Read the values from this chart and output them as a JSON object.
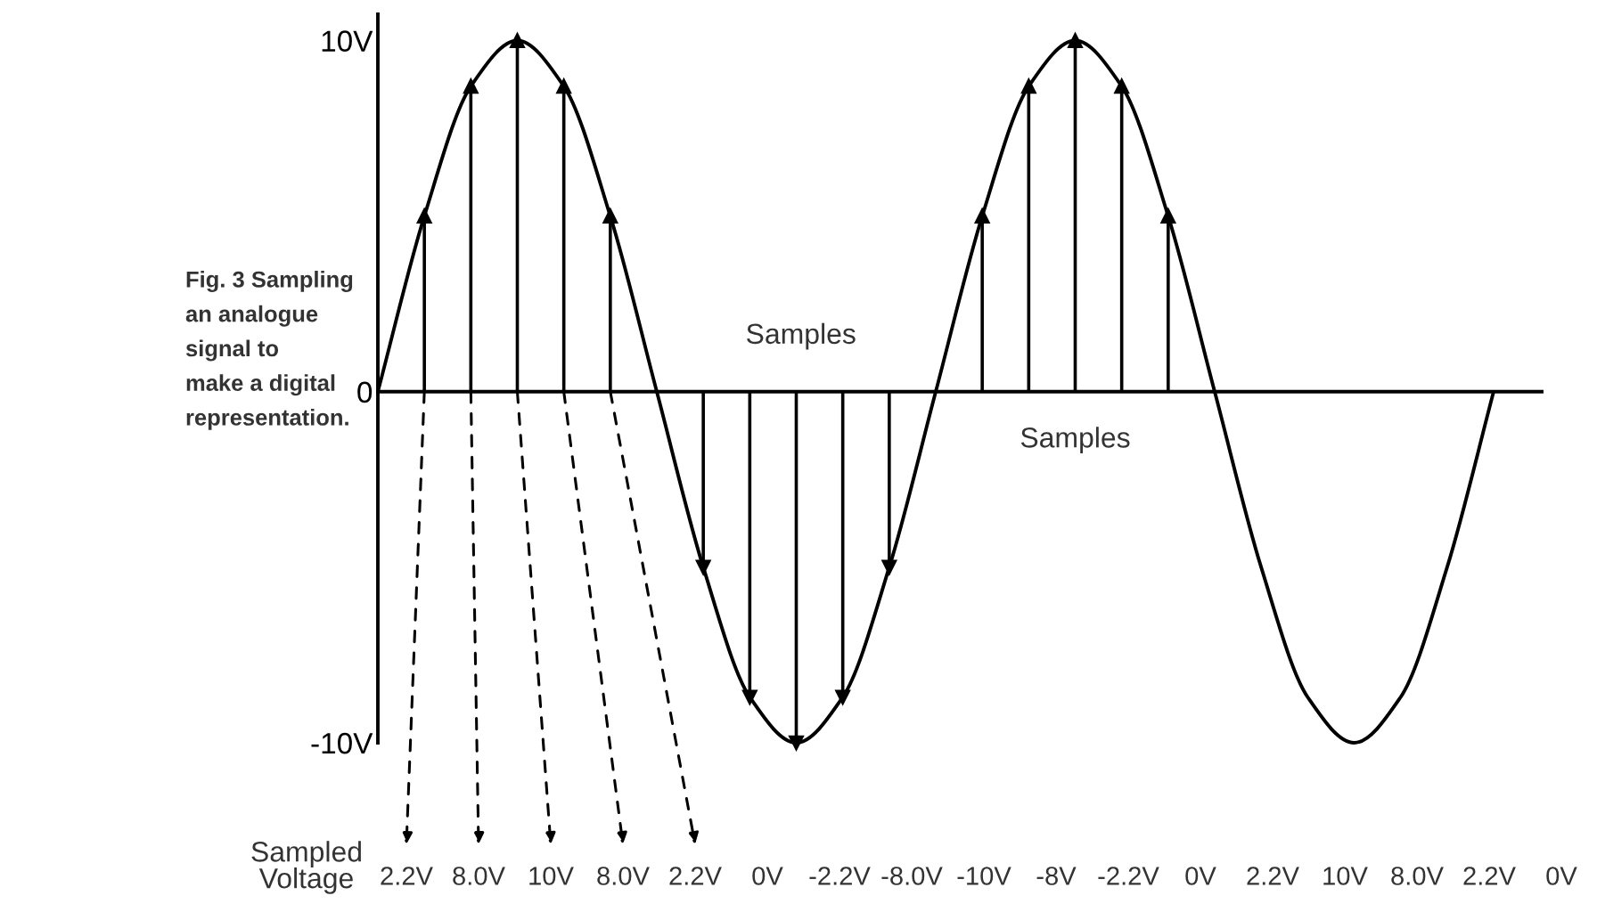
{
  "chart_data": {
    "type": "line",
    "title": "Fig. 3 Sampling\nan analogue\nsignal to\nmake a digital\nrepresentation.",
    "categories": [
      null,
      null,
      null,
      null,
      null,
      null,
      null,
      null,
      null,
      null,
      null,
      null,
      null,
      null,
      null,
      null,
      null,
      null,
      null,
      null,
      null,
      null,
      null,
      null,
      null
    ],
    "ylim": [
      -10,
      10.75
    ],
    "yticks": [
      {
        "value": 10,
        "label": "10V"
      },
      0,
      {
        "value": -10,
        "label": "-10V"
      }
    ],
    "tick_labels": "y",
    "series": [
      {
        "color": "#000000",
        "line_style": "solid",
        "values": [
          0,
          5,
          8.7,
          10,
          8.7,
          5,
          0,
          -5,
          -8.7,
          -10,
          -8.7,
          -5,
          0,
          5,
          8.7,
          10,
          8.7,
          5,
          0,
          -5,
          -8.7,
          -10,
          -8.7,
          -5,
          0
        ]
      },
      {
        "type": "lollipop",
        "color": "#000000",
        "marker": "triangle",
        "values": [
          null,
          5,
          8.7,
          10,
          8.7,
          5,
          null,
          -5,
          -8.7,
          -10,
          -8.7,
          -5,
          null,
          5,
          8.7,
          10,
          8.7,
          5,
          null,
          null,
          null,
          null,
          null,
          null,
          null
        ]
      }
    ],
    "annotations": [
      "Samples",
      "Samples",
      "Sampled\nVoltage",
      "2.2V",
      "8.0V",
      "10V",
      "8.0V",
      "2.2V",
      "0V",
      "-2.2V",
      "-8.0V",
      "-10V",
      "-8V",
      "-2.2V",
      "0V",
      "2.2V",
      "10V",
      "8.0V",
      "2.2V",
      "0V"
    ]
  }
}
